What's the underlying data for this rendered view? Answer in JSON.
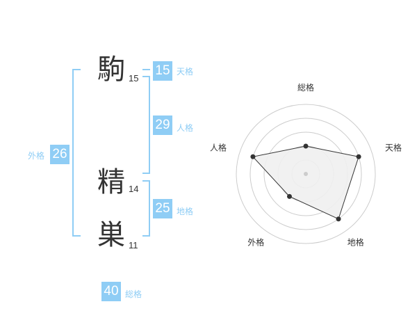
{
  "name": [
    {
      "char": "駒",
      "strokes": "15"
    },
    {
      "char": "精",
      "strokes": "14"
    },
    {
      "char": "巣",
      "strokes": "11"
    }
  ],
  "kaku": {
    "tenkaku": {
      "label": "天格",
      "value": "15"
    },
    "jinkaku": {
      "label": "人格",
      "value": "29"
    },
    "chikaku": {
      "label": "地格",
      "value": "25"
    },
    "gaikaku": {
      "label": "外格",
      "value": "26"
    },
    "soukaku": {
      "label": "総格",
      "value": "40"
    }
  },
  "colors": {
    "accent": "#8fcdf5",
    "text": "#333333",
    "grid": "#cccccc",
    "fill": "#f0f0f0"
  },
  "chart_data": {
    "type": "radar",
    "axes": [
      "総格",
      "天格",
      "地格",
      "外格",
      "人格"
    ],
    "values": [
      2,
      4,
      4,
      2,
      4
    ],
    "range": [
      0,
      5
    ],
    "rings": 5
  }
}
